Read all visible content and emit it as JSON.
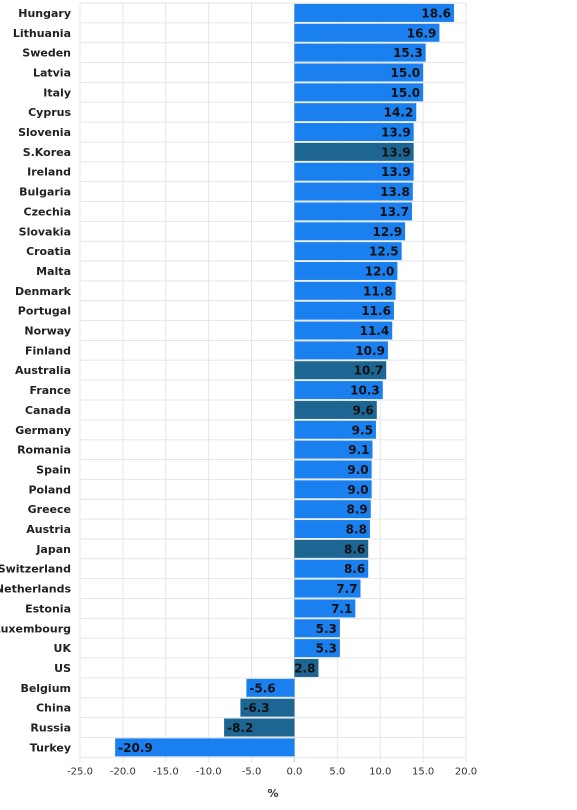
{
  "chart_data": {
    "type": "bar",
    "orientation": "horizontal",
    "categories": [
      "Hungary",
      "Lithuania",
      "Sweden",
      "Latvia",
      "Italy",
      "Cyprus",
      "Slovenia",
      "S.Korea",
      "Ireland",
      "Bulgaria",
      "Czechia",
      "Slovakia",
      "Croatia",
      "Malta",
      "Denmark",
      "Portugal",
      "Norway",
      "Finland",
      "Australia",
      "France",
      "Canada",
      "Germany",
      "Romania",
      "Spain",
      "Poland",
      "Greece",
      "Austria",
      "Japan",
      "Switzerland",
      "Netherlands",
      "Estonia",
      "Luxembourg",
      "UK",
      "US",
      "Belgium",
      "China",
      "Russia",
      "Turkey"
    ],
    "values": [
      18.6,
      16.9,
      15.3,
      15.0,
      15.0,
      14.2,
      13.9,
      13.9,
      13.9,
      13.8,
      13.7,
      12.9,
      12.5,
      12.0,
      11.8,
      11.6,
      11.4,
      10.9,
      10.7,
      10.3,
      9.6,
      9.5,
      9.1,
      9.0,
      9.0,
      8.9,
      8.8,
      8.6,
      8.6,
      7.7,
      7.1,
      5.3,
      5.3,
      2.8,
      -5.6,
      -6.3,
      -8.2,
      -20.9
    ],
    "value_labels": [
      "18.6",
      "16.9",
      "15.3",
      "15.0",
      "15.0",
      "14.2",
      "13.9",
      "13.9",
      "13.9",
      "13.8",
      "13.7",
      "12.9",
      "12.5",
      "12.0",
      "11.8",
      "11.6",
      "11.4",
      "10.9",
      "10.7",
      "10.3",
      "9.6",
      "9.5",
      "9.1",
      "9.0",
      "9.0",
      "8.9",
      "8.8",
      "8.6",
      "8.6",
      "7.7",
      "7.1",
      "5.3",
      "5.3",
      "2.8",
      "-5.6",
      "-6.3",
      "-8.2",
      "-20.9"
    ],
    "highlighted": [
      "S.Korea",
      "Australia",
      "Canada",
      "Japan",
      "US",
      "China",
      "Russia"
    ],
    "colors": {
      "default": "#1a80f0",
      "highlight": "#1d6694",
      "grid": "#e6e6e6",
      "zero_line": "#cccccc"
    },
    "xlim": [
      -25,
      20
    ],
    "x_ticks": [
      -25,
      -20,
      -15,
      -10,
      -5,
      0,
      5,
      10,
      15,
      20
    ],
    "x_tick_labels": [
      "-25.0",
      "-20.0",
      "-15.0",
      "-10.0",
      "-5.0",
      "0.0",
      "5.0",
      "10.0",
      "15.0",
      "20.0"
    ],
    "xlabel": "%",
    "title": "",
    "grid": true
  }
}
